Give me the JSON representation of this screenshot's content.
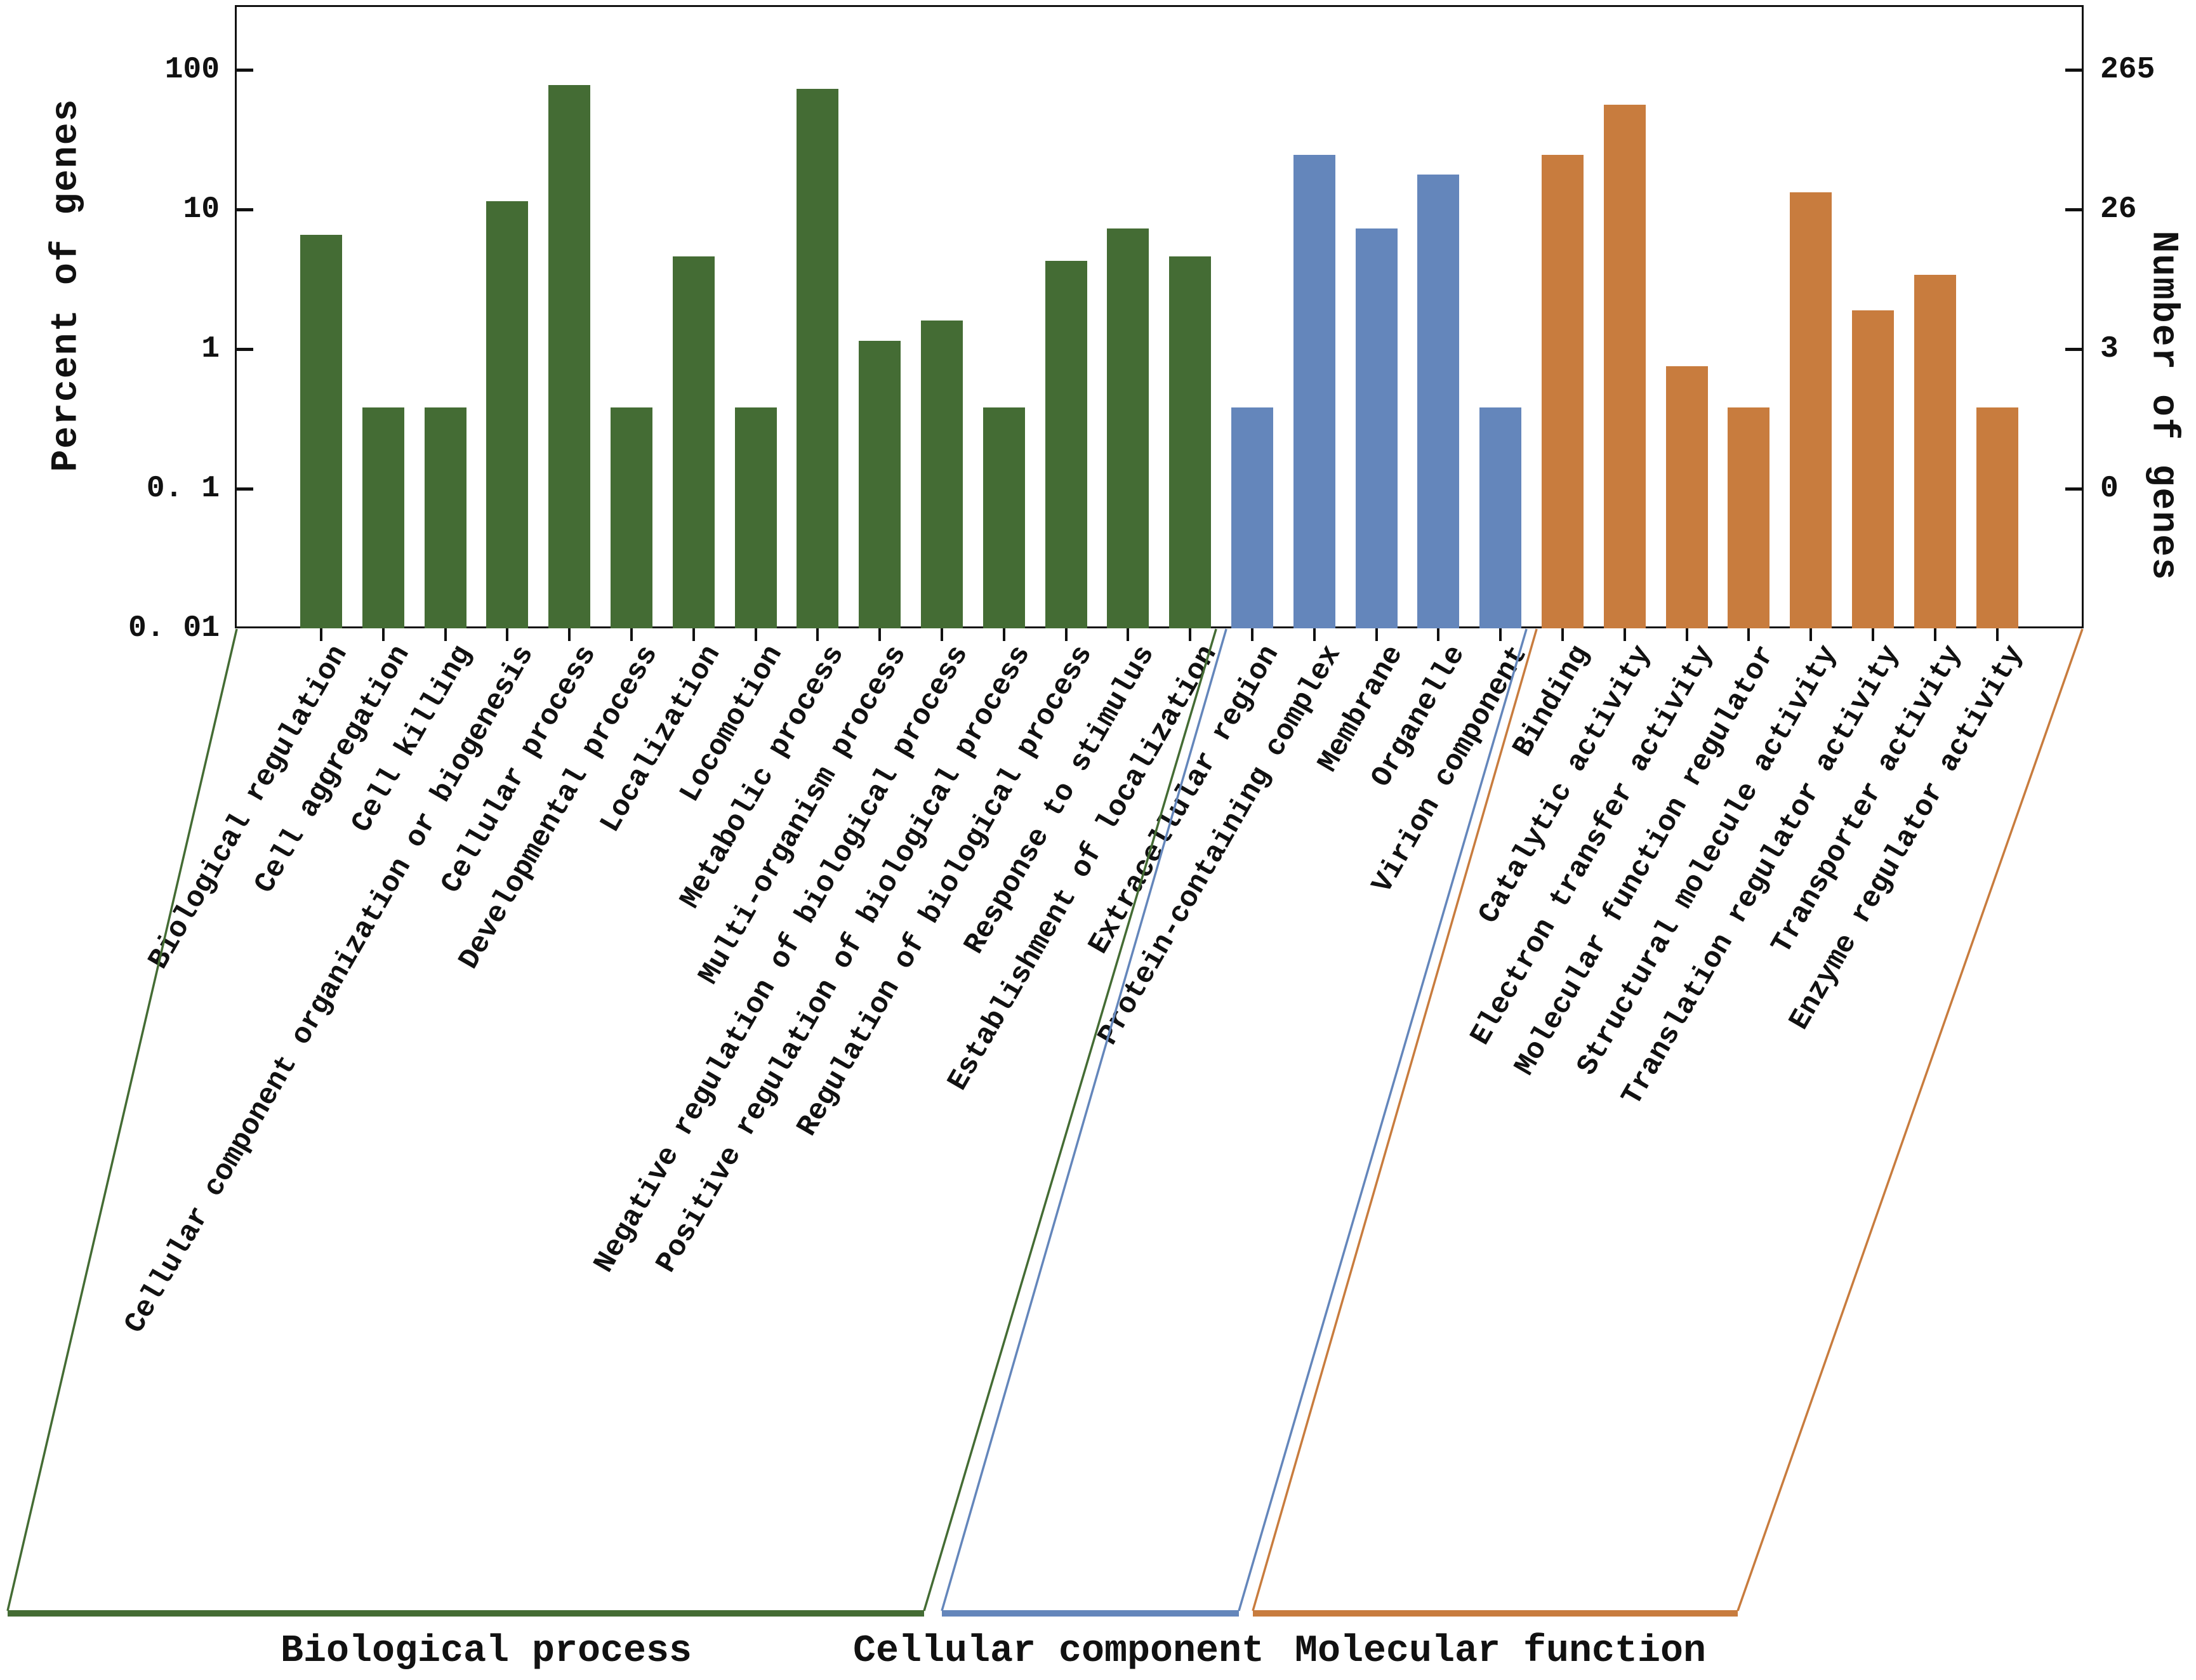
{
  "chart_data": {
    "type": "bar",
    "title": "",
    "yscale": "log",
    "ylabel_left": "Percent of genes",
    "ylabel_right": "Number of genes",
    "ylim": [
      0.01,
      280
    ],
    "grid": false,
    "legend_position": "bottom",
    "yticks_left": [
      {
        "label": "100",
        "value": 100
      },
      {
        "label": "10",
        "value": 10
      },
      {
        "label": "1",
        "value": 1
      },
      {
        "label": "0. 1",
        "value": 0.1
      },
      {
        "label": "0. 01",
        "value": 0.01
      }
    ],
    "yticks_right": [
      {
        "label": "265",
        "value": 100
      },
      {
        "label": "26",
        "value": 10
      },
      {
        "label": "3",
        "value": 1
      },
      {
        "label": "0",
        "value": 0.1
      }
    ],
    "groups": [
      {
        "name": "Biological process",
        "color": "#446C34",
        "categories": [
          "Biological regulation",
          "Cell aggregation",
          "Cell killing",
          "Cellular component organization or biogenesis",
          "Cellular process",
          "Developmental process",
          "Localization",
          "Locomotion",
          "Metabolic process",
          "Multi-organism process",
          "Negative regulation of biological process",
          "Positive regulation of biological process",
          "Regulation of biological process",
          "Response to stimulus",
          "Establishment of localization"
        ],
        "values": [
          6.6,
          0.38,
          0.38,
          11.5,
          78,
          0.38,
          4.6,
          0.38,
          73,
          1.15,
          1.6,
          0.38,
          4.3,
          7.3,
          4.6
        ]
      },
      {
        "name": "Cellular component",
        "color": "#6486BB",
        "categories": [
          "Extracellular region",
          "Protein-containing complex",
          "Membrane",
          "Organelle",
          "Virion component"
        ],
        "values": [
          0.38,
          24.5,
          7.3,
          17.7,
          0.38
        ]
      },
      {
        "name": "Molecular function",
        "color": "#C87C3E",
        "categories": [
          "Binding",
          "Catalytic activity",
          "Electron transfer activity",
          "Molecular function regulator",
          "Structural molecule activity",
          "Translation regulator activity",
          "Transporter activity",
          "Enzyme regulator activity"
        ],
        "values": [
          24.5,
          56,
          0.75,
          0.38,
          13.3,
          1.9,
          3.4,
          0.38
        ]
      }
    ]
  }
}
